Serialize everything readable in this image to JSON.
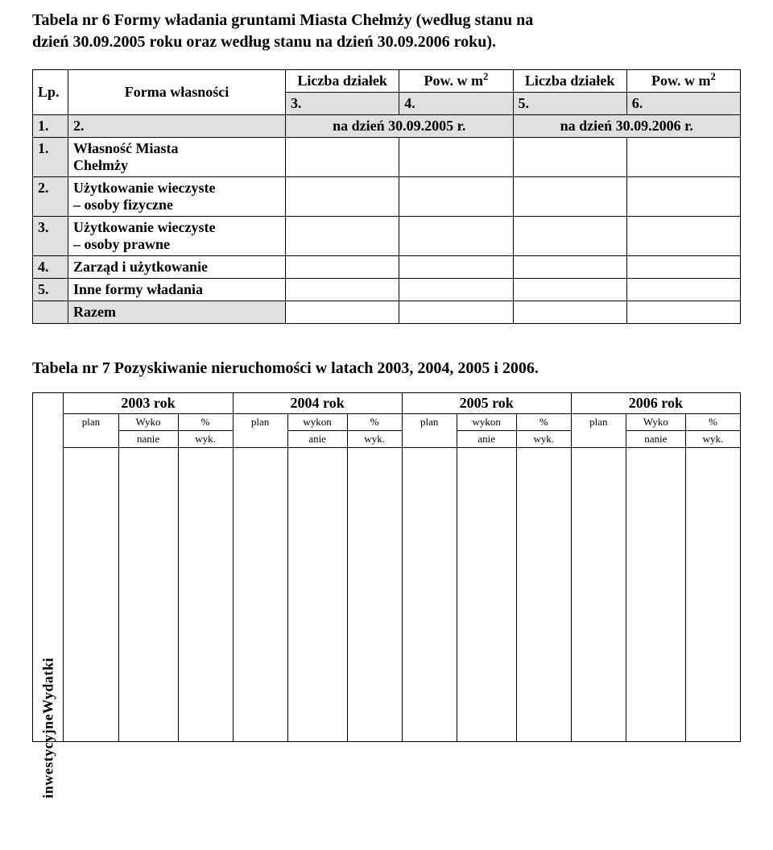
{
  "title_line1": "Tabela nr 6 Formy władania gruntami Miasta Chełmży (według stanu na",
  "title_line2": "dzień 30.09.2005 roku oraz według stanu na dzień 30.09.2006 roku).",
  "t1": {
    "hdr_lp": "Lp.",
    "hdr_form": "Forma własności",
    "hdr_liczba": "Liczba działek",
    "hdr_pow_pre": "Pow. w m",
    "hdr_pow_sup": "2",
    "nums": {
      "n1": "1.",
      "n2": "2.",
      "n3": "3.",
      "n4": "4.",
      "n5": "5.",
      "n6": "6."
    },
    "date2005": "na dzień 30.09.2005 r.",
    "date2006": "na dzień 30.09.2006 r.",
    "rows": {
      "r1_num": "1.",
      "r1_label_a": "Własność Miasta",
      "r1_label_b": "Chełmży",
      "r2_num": "2.",
      "r2_label_a": "Użytkowanie wieczyste",
      "r2_label_b": "– osoby fizyczne",
      "r3_num": "3.",
      "r3_label_a": "Użytkowanie wieczyste",
      "r3_label_b": "– osoby prawne",
      "r4_num": "4.",
      "r4_label": "Zarząd i użytkowanie",
      "r5_num": "5.",
      "r5_label": "Inne formy władania",
      "sum_label": "Razem"
    }
  },
  "section2_title": "Tabela nr 7 Pozyskiwanie nieruchomości w latach 2003, 2004, 2005 i 2006.",
  "t2": {
    "years": {
      "y1": "2003 rok",
      "y2": "2004 rok",
      "y3": "2005 rok",
      "y4": "2006 rok"
    },
    "sub": {
      "plan": "plan",
      "wyko_nanie_a": "Wyko",
      "wyko_nanie_b": "nanie",
      "wykon_anie_a": "wykon",
      "wykon_anie_b": "anie",
      "pct": "%",
      "wyk": "wyk."
    },
    "side_label": "inwestycyjneWydatki"
  }
}
